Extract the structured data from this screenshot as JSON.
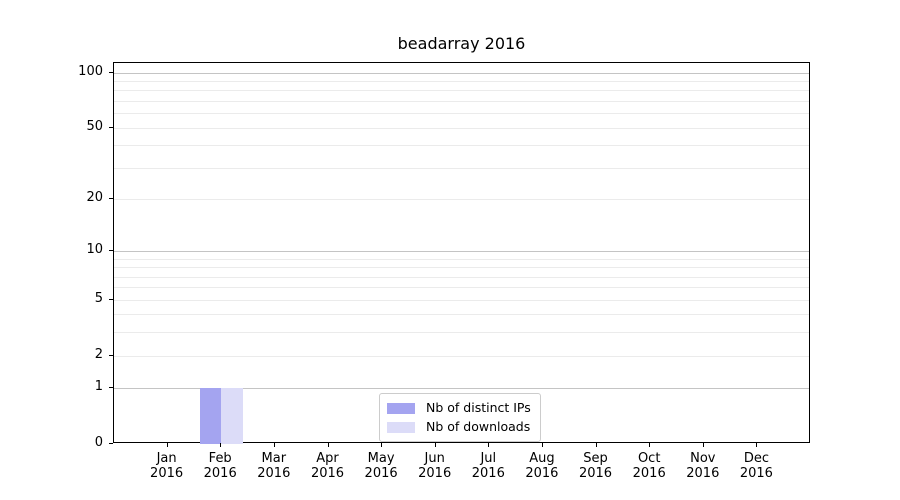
{
  "chart_data": {
    "type": "bar",
    "title": "beadarray 2016",
    "categories": [
      "Jan",
      "Feb",
      "Mar",
      "Apr",
      "May",
      "Jun",
      "Jul",
      "Aug",
      "Sep",
      "Oct",
      "Nov",
      "Dec"
    ],
    "year_label": "2016",
    "series": [
      {
        "name": "Nb of distinct IPs",
        "color": "#a4a4f0",
        "values": [
          0,
          1,
          0,
          0,
          0,
          0,
          0,
          0,
          0,
          0,
          0,
          0
        ]
      },
      {
        "name": "Nb of downloads",
        "color": "#dcdcf8",
        "values": [
          0,
          1,
          0,
          0,
          0,
          0,
          0,
          0,
          0,
          0,
          0,
          0
        ]
      }
    ],
    "xlabel": "",
    "ylabel": "",
    "y_axis": {
      "scale": "log1p",
      "ticks": [
        0,
        1,
        2,
        5,
        10,
        20,
        50,
        100
      ],
      "range": [
        0,
        113
      ]
    },
    "gridlines": {
      "major": [
        1,
        10,
        100
      ],
      "minor": [
        2,
        3,
        4,
        5,
        6,
        7,
        8,
        9,
        20,
        30,
        40,
        50,
        60,
        70,
        80,
        90
      ]
    },
    "legend": {
      "position": "lower center"
    }
  }
}
